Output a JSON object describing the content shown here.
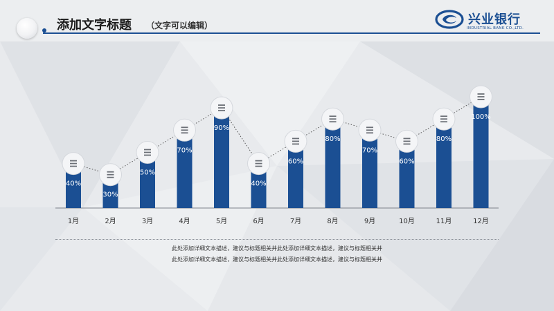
{
  "header": {
    "title": "添加文字标题",
    "subtitle": "（文字可以编辑）"
  },
  "logo": {
    "name": "兴业银行",
    "english": "INDUSTRIAL BANK CO.,LTD."
  },
  "colors": {
    "bar": "#1b4f93",
    "accent": "#1b4f93",
    "marker_fill": "#f4f5f7",
    "dotted_line": "#555555"
  },
  "chart_data": {
    "type": "bar",
    "categories": [
      "1月",
      "2月",
      "3月",
      "4月",
      "5月",
      "6月",
      "7月",
      "8月",
      "9月",
      "10月",
      "11月",
      "12月"
    ],
    "values": [
      40,
      30,
      50,
      70,
      90,
      40,
      60,
      80,
      70,
      60,
      80,
      100
    ],
    "value_labels": [
      "40%",
      "30%",
      "50%",
      "70%",
      "90%",
      "40%",
      "60%",
      "80%",
      "70%",
      "60%",
      "80%",
      "100%"
    ],
    "ylim": [
      0,
      100
    ],
    "grid": false,
    "markers": "circle with list-icon on top of each bar, connected by dotted line"
  },
  "description": {
    "line1": "此处添加详细文本描述，建议与标题相关并此处添加详细文本描述，建议与标题相关并",
    "line2": "此处添加详细文本描述，建议与标题相关并此处添加详细文本描述，建议与标题相关并"
  }
}
